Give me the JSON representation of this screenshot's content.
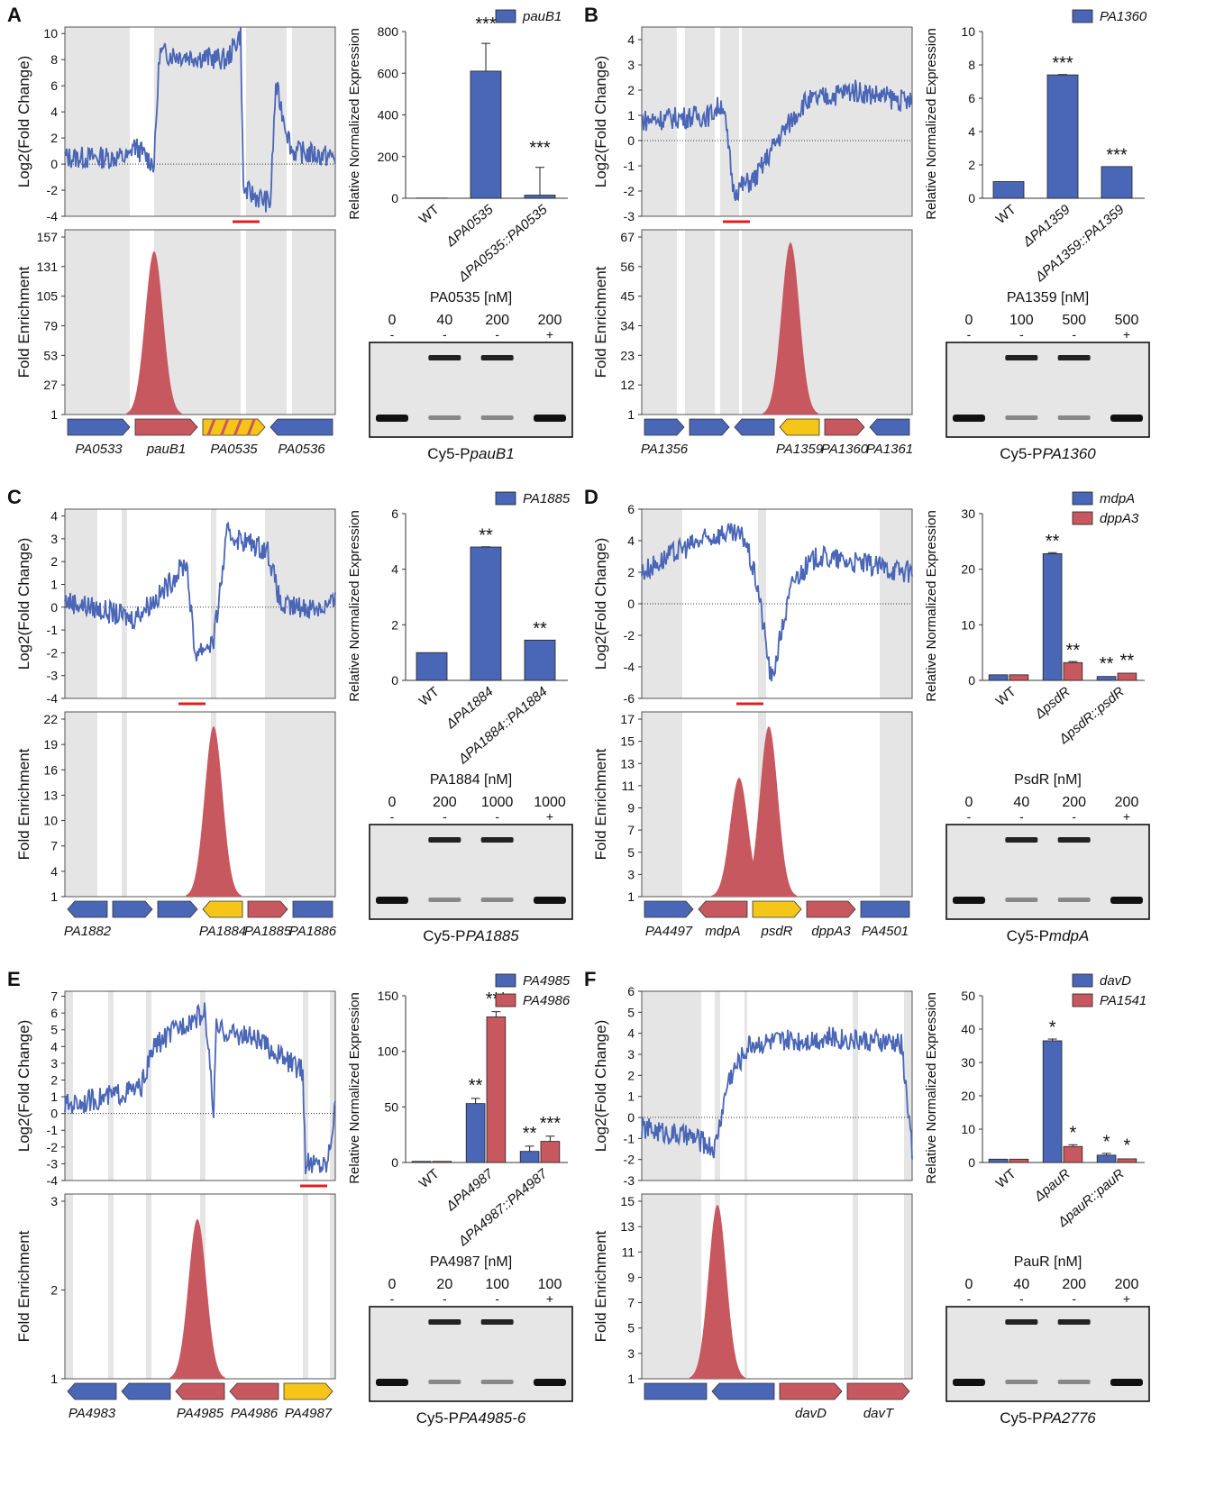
{
  "colors": {
    "blue": "#4a66b6",
    "red": "#c8585f",
    "yellow": "#f5c518",
    "gray": "#e5e5e5",
    "bar_blue": "#4a66b6",
    "bar_red": "#c8585f"
  },
  "panels": [
    {
      "id": "A",
      "letter": "A",
      "log2": {
        "ylabel": "Log2(Fold Change)",
        "yticks": [
          "10",
          "8",
          "6",
          "4",
          "2",
          "0",
          "-2",
          "-4"
        ],
        "ymin": -4,
        "ymax": 10.5
      },
      "fold": {
        "ylabel": "Fold Enrichment",
        "yticks": [
          "157",
          "131",
          "105",
          "79",
          "53",
          "27",
          "1"
        ],
        "peaks": [
          [
            0.33,
            0.92
          ]
        ]
      },
      "genes": [
        {
          "name": "PA0533",
          "color": "blue",
          "dir": "r"
        },
        {
          "name": "pauB1",
          "color": "red",
          "dir": "r"
        },
        {
          "name": "PA0535",
          "color": "hatch",
          "dir": "r"
        },
        {
          "name": "PA0536",
          "color": "blue",
          "dir": "l"
        }
      ],
      "bar": {
        "ylabel": "Relative  Normalized Expression",
        "yticks": [
          "800",
          "600",
          "400",
          "200",
          "0"
        ],
        "ymax": 800,
        "legend": [
          {
            "name": "pauB1",
            "color": "blue"
          }
        ],
        "categories": [
          "WT",
          "ΔPA0535",
          "ΔPA0535::PA0535"
        ],
        "series": [
          [
            {
              "v": 1,
              "sig": ""
            },
            {
              "v": 610,
              "sig": "***"
            },
            {
              "v": 15,
              "sig": "***"
            }
          ]
        ]
      },
      "gel": {
        "title": "PA0535 [nM]",
        "conc": [
          "0",
          "40",
          "200",
          "200"
        ],
        "comp": [
          "-",
          "-",
          "-",
          "+"
        ],
        "probe_prefix": "Cy5-P",
        "probe": "pauB1"
      }
    },
    {
      "id": "B",
      "letter": "B",
      "log2": {
        "ylabel": "Log2(Fold Change)",
        "yticks": [
          "4",
          "3",
          "2",
          "1",
          "0",
          "-1",
          "-2",
          "-3"
        ],
        "ymin": -3,
        "ymax": 4.5
      },
      "fold": {
        "ylabel": "Fold Enrichment",
        "yticks": [
          "67",
          "56",
          "45",
          "34",
          "23",
          "12",
          "1"
        ],
        "peaks": [
          [
            0.55,
            0.97
          ]
        ]
      },
      "genes": [
        {
          "name": "PA1356",
          "color": "blue",
          "dir": "r"
        },
        {
          "name": "",
          "color": "blue",
          "dir": "r"
        },
        {
          "name": "",
          "color": "blue",
          "dir": "l"
        },
        {
          "name": "PA1359",
          "color": "yellow",
          "dir": "l"
        },
        {
          "name": "PA1360",
          "color": "red",
          "dir": "r"
        },
        {
          "name": "PA1361",
          "color": "blue",
          "dir": "l"
        }
      ],
      "bar": {
        "ylabel": "Relative  Normalized Expression",
        "yticks": [
          "10",
          "8",
          "6",
          "4",
          "2",
          "0"
        ],
        "ymax": 10,
        "legend": [
          {
            "name": "PA1360",
            "color": "blue"
          }
        ],
        "categories": [
          "WT",
          "ΔPA1359",
          "ΔPA1359::PA1359"
        ],
        "series": [
          [
            {
              "v": 1,
              "sig": ""
            },
            {
              "v": 7.4,
              "sig": "***"
            },
            {
              "v": 1.9,
              "sig": "***"
            }
          ]
        ]
      },
      "gel": {
        "title": "PA1359 [nM]",
        "conc": [
          "0",
          "100",
          "500",
          "500"
        ],
        "comp": [
          "-",
          "-",
          "-",
          "+"
        ],
        "probe_prefix": "Cy5-P",
        "probe": "PA1360"
      }
    },
    {
      "id": "C",
      "letter": "C",
      "log2": {
        "ylabel": "Log2(Fold Change)",
        "yticks": [
          "4",
          "3",
          "2",
          "1",
          "0",
          "-1",
          "-2",
          "-3",
          "-4"
        ],
        "ymin": -4,
        "ymax": 4.3
      },
      "fold": {
        "ylabel": "Fold Enrichment",
        "yticks": [
          "22",
          "19",
          "16",
          "13",
          "10",
          "7",
          "4",
          "1"
        ],
        "peaks": [
          [
            0.55,
            0.96
          ]
        ]
      },
      "genes": [
        {
          "name": "PA1882",
          "color": "blue",
          "dir": "l"
        },
        {
          "name": "",
          "color": "blue",
          "dir": "r"
        },
        {
          "name": "",
          "color": "blue",
          "dir": "r"
        },
        {
          "name": "PA1884",
          "color": "yellow",
          "dir": "l"
        },
        {
          "name": "PA1885",
          "color": "red",
          "dir": "r"
        },
        {
          "name": "PA1886",
          "color": "blue",
          "dir": "n"
        }
      ],
      "bar": {
        "ylabel": "Relative  Normalized Expression",
        "yticks": [
          "6",
          "4",
          "2",
          "0"
        ],
        "ymax": 6,
        "legend": [
          {
            "name": "PA1885",
            "color": "blue"
          }
        ],
        "categories": [
          "WT",
          "ΔPA1884",
          "ΔPA1884::PA1884"
        ],
        "series": [
          [
            {
              "v": 1,
              "sig": ""
            },
            {
              "v": 4.8,
              "sig": "**"
            },
            {
              "v": 1.45,
              "sig": "**"
            }
          ]
        ]
      },
      "gel": {
        "title": "PA1884 [nM]",
        "conc": [
          "0",
          "200",
          "1000",
          "1000"
        ],
        "comp": [
          "-",
          "-",
          "-",
          "+"
        ],
        "probe_prefix": "Cy5-P",
        "probe": "PA1885"
      }
    },
    {
      "id": "D",
      "letter": "D",
      "log2": {
        "ylabel": "Log2(Fold Change)",
        "yticks": [
          "6",
          "4",
          "2",
          "0",
          "-2",
          "-4",
          "-6"
        ],
        "ymin": -6,
        "ymax": 6
      },
      "fold": {
        "ylabel": "Fold Enrichment",
        "yticks": [
          "17",
          "15",
          "13",
          "11",
          "9",
          "7",
          "5",
          "3",
          "1"
        ],
        "peaks": [
          [
            0.36,
            0.67
          ],
          [
            0.47,
            0.96
          ]
        ]
      },
      "genes": [
        {
          "name": "PA4497",
          "color": "blue",
          "dir": "r"
        },
        {
          "name": "mdpA",
          "color": "red",
          "dir": "l"
        },
        {
          "name": "psdR",
          "color": "yellow",
          "dir": "r"
        },
        {
          "name": "dppA3",
          "color": "red",
          "dir": "r"
        },
        {
          "name": "PA4501",
          "color": "blue",
          "dir": "n"
        }
      ],
      "bar": {
        "ylabel": "Relative  Normalized Expression",
        "yticks": [
          "30",
          "20",
          "10",
          "0"
        ],
        "ymax": 30,
        "legend": [
          {
            "name": "mdpA",
            "color": "blue"
          },
          {
            "name": "dppA3",
            "color": "red"
          }
        ],
        "categories": [
          "WT",
          "ΔpsdR",
          "ΔpsdR::psdR"
        ],
        "series": [
          [
            {
              "v": 1,
              "sig": ""
            },
            {
              "v": 22.8,
              "sig": "**"
            },
            {
              "v": 0.7,
              "sig": "**"
            }
          ],
          [
            {
              "v": 1,
              "sig": ""
            },
            {
              "v": 3.2,
              "sig": "**"
            },
            {
              "v": 1.3,
              "sig": "**"
            }
          ]
        ]
      },
      "gel": {
        "title": "PsdR [nM]",
        "conc": [
          "0",
          "40",
          "200",
          "200"
        ],
        "comp": [
          "-",
          "-",
          "-",
          "+"
        ],
        "probe_prefix": "Cy5-P",
        "probe": "mdpA"
      }
    },
    {
      "id": "E",
      "letter": "E",
      "log2": {
        "ylabel": "Log2(Fold Change)",
        "yticks": [
          "7",
          "6",
          "5",
          "4",
          "3",
          "2",
          "1",
          "0",
          "-1",
          "-2",
          "-3",
          "-4"
        ],
        "ymin": -4,
        "ymax": 7.3
      },
      "fold": {
        "ylabel": "Fold Enrichment",
        "yticks": [
          "3",
          "2",
          "1"
        ],
        "peaks": [
          [
            0.49,
            0.9
          ]
        ]
      },
      "genes": [
        {
          "name": "PA4983",
          "color": "blue",
          "dir": "l"
        },
        {
          "name": "",
          "color": "blue",
          "dir": "l"
        },
        {
          "name": "PA4985",
          "color": "red",
          "dir": "l"
        },
        {
          "name": "PA4986",
          "color": "red",
          "dir": "l"
        },
        {
          "name": "PA4987",
          "color": "yellow",
          "dir": "r"
        }
      ],
      "bar": {
        "ylabel": "Relative  Normalized Expression",
        "yticks": [
          "150",
          "100",
          "50",
          "0"
        ],
        "ymax": 150,
        "legend": [
          {
            "name": "PA4985",
            "color": "blue"
          },
          {
            "name": "PA4986",
            "color": "red"
          }
        ],
        "categories": [
          "WT",
          "ΔPA4987",
          "ΔPA4987::PA4987"
        ],
        "series": [
          [
            {
              "v": 1,
              "sig": ""
            },
            {
              "v": 53,
              "sig": "**"
            },
            {
              "v": 10,
              "sig": "**"
            }
          ],
          [
            {
              "v": 1,
              "sig": ""
            },
            {
              "v": 131,
              "sig": "***"
            },
            {
              "v": 19,
              "sig": "***"
            }
          ]
        ]
      },
      "gel": {
        "title": "PA4987 [nM]",
        "conc": [
          "0",
          "20",
          "100",
          "100"
        ],
        "comp": [
          "-",
          "-",
          "-",
          "+"
        ],
        "probe_prefix": "Cy5-P",
        "probe": "PA4985-6"
      }
    },
    {
      "id": "F",
      "letter": "F",
      "log2": {
        "ylabel": "Log2(Fold Change)",
        "yticks": [
          "6",
          "5",
          "4",
          "3",
          "2",
          "1",
          "0",
          "-1",
          "-2",
          "-3"
        ],
        "ymin": -3,
        "ymax": 6
      },
      "fold": {
        "ylabel": "Fold Enrichment",
        "yticks": [
          "15",
          "13",
          "11",
          "9",
          "7",
          "5",
          "3",
          "1"
        ],
        "peaks": [
          [
            0.28,
            0.98
          ]
        ]
      },
      "genes": [
        {
          "name": "",
          "color": "blue",
          "dir": "n"
        },
        {
          "name": "",
          "color": "blue",
          "dir": "l"
        },
        {
          "name": "davD",
          "color": "red",
          "dir": "r"
        },
        {
          "name": "davT",
          "color": "red",
          "dir": "r"
        }
      ],
      "bar": {
        "ylabel": "Relative  Normalized Expression",
        "yticks": [
          "50",
          "40",
          "30",
          "20",
          "10",
          "0"
        ],
        "ymax": 50,
        "legend": [
          {
            "name": "davD",
            "color": "blue"
          },
          {
            "name": "PA1541",
            "color": "red"
          }
        ],
        "categories": [
          "WT",
          "ΔpauR",
          "ΔpauR::pauR"
        ],
        "series": [
          [
            {
              "v": 1,
              "sig": ""
            },
            {
              "v": 36.5,
              "sig": "*"
            },
            {
              "v": 2.2,
              "sig": "*"
            }
          ],
          [
            {
              "v": 1,
              "sig": ""
            },
            {
              "v": 4.8,
              "sig": "*"
            },
            {
              "v": 1.1,
              "sig": "*"
            }
          ]
        ]
      },
      "gel": {
        "title": "PauR [nM]",
        "conc": [
          "0",
          "40",
          "200",
          "200"
        ],
        "comp": [
          "-",
          "-",
          "-",
          "+"
        ],
        "probe_prefix": "Cy5-P",
        "probe": "PA2776"
      }
    }
  ]
}
